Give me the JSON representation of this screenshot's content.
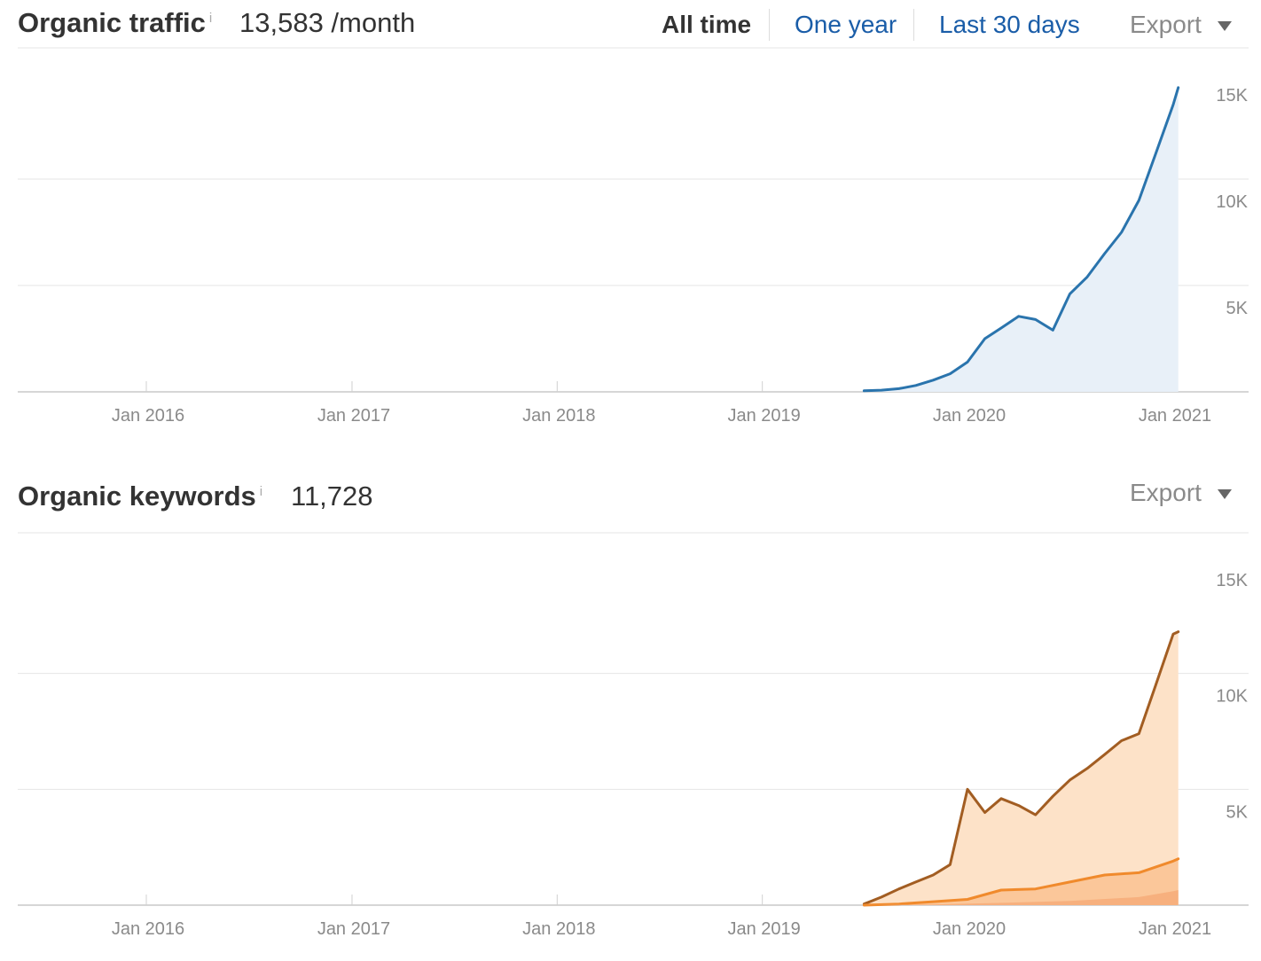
{
  "traffic": {
    "title": "Organic traffic",
    "info_icon": "i",
    "metric": "13,583 /month",
    "ranges": {
      "all_time": "All time",
      "one_year": "One year",
      "last_30_days": "Last 30 days"
    },
    "export_label": "Export"
  },
  "keywords": {
    "title": "Organic keywords",
    "info_icon": "i",
    "metric": "11,728",
    "export_label": "Export"
  },
  "colors": {
    "traffic_line": "#2a74ad",
    "traffic_fill": "#e8f0f8",
    "keywords_top_line": "#a25d22",
    "keywords_top_fill": "#fde2c8",
    "keywords_mid_line": "#f08a2c",
    "keywords_mid_fill": "#fbc79a",
    "keywords_low_fill": "#f7b07e"
  },
  "chart_data": [
    {
      "type": "area",
      "x_ticks": [
        "Jan 2016",
        "Jan 2017",
        "Jan 2018",
        "Jan 2019",
        "Jan 2020",
        "Jan 2021"
      ],
      "y_ticks": [
        "5K",
        "10K",
        "15K"
      ],
      "ylim": [
        0,
        15000
      ],
      "grid": true,
      "series": [
        {
          "x": [
            "2019-07-01",
            "2019-08-01",
            "2019-09-01",
            "2019-10-01",
            "2019-11-01",
            "2019-12-01",
            "2020-01-01",
            "2020-02-01",
            "2020-03-01",
            "2020-04-01",
            "2020-05-01",
            "2020-06-01",
            "2020-07-01",
            "2020-08-01",
            "2020-09-01",
            "2020-10-01",
            "2020-11-01",
            "2020-12-01",
            "2021-01-01",
            "2021-01-10"
          ],
          "values": [
            50,
            80,
            150,
            300,
            550,
            850,
            1400,
            2500,
            3000,
            3550,
            3400,
            2900,
            4600,
            5400,
            6500,
            7500,
            9000,
            11200,
            13500,
            14300
          ]
        }
      ]
    },
    {
      "type": "area",
      "x_ticks": [
        "Jan 2016",
        "Jan 2017",
        "Jan 2018",
        "Jan 2019",
        "Jan 2020",
        "Jan 2021"
      ],
      "y_ticks": [
        "5K",
        "10K",
        "15K"
      ],
      "ylim": [
        0,
        15000
      ],
      "grid": true,
      "series": [
        {
          "x": [
            "2019-07-01",
            "2019-08-01",
            "2019-09-01",
            "2019-10-01",
            "2019-11-01",
            "2019-12-01",
            "2020-01-01",
            "2020-02-01",
            "2020-03-01",
            "2020-04-01",
            "2020-05-01",
            "2020-06-01",
            "2020-07-01",
            "2020-08-01",
            "2020-09-01",
            "2020-10-01",
            "2020-11-01",
            "2020-12-01",
            "2021-01-01",
            "2021-01-10"
          ],
          "values": [
            50,
            350,
            700,
            1000,
            1300,
            1750,
            5000,
            4000,
            4600,
            4300,
            3900,
            4700,
            5400,
            5900,
            6500,
            7100,
            7400,
            9500,
            11700,
            11800
          ]
        },
        {
          "x": [
            "2019-07-01",
            "2019-09-01",
            "2019-11-01",
            "2020-01-01",
            "2020-03-01",
            "2020-05-01",
            "2020-07-01",
            "2020-09-01",
            "2020-11-01",
            "2021-01-01",
            "2021-01-10"
          ],
          "values": [
            0,
            50,
            150,
            250,
            650,
            700,
            1000,
            1300,
            1400,
            1900,
            2000
          ]
        },
        {
          "x": [
            "2019-07-01",
            "2019-11-01",
            "2020-03-01",
            "2020-07-01",
            "2020-11-01",
            "2021-01-01",
            "2021-01-10"
          ],
          "values": [
            0,
            30,
            100,
            180,
            350,
            600,
            650
          ]
        }
      ]
    }
  ]
}
